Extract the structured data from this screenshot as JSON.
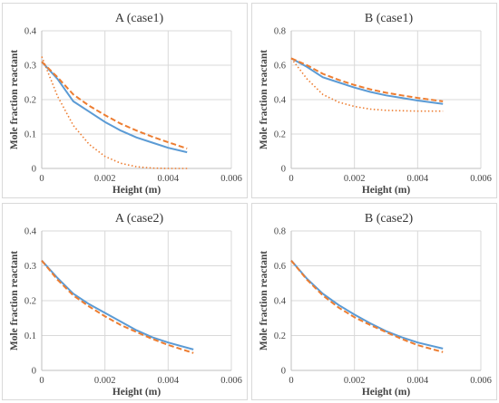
{
  "colors": {
    "solid": "#5b9bd5",
    "dashed": "#ed7d31",
    "dotted": "#ed7d31",
    "grid": "#d9d9d9",
    "axis": "#bfbfbf"
  },
  "chart_data": [
    {
      "type": "line",
      "title": "A (case1)",
      "xlabel": "Height (m)",
      "ylabel": "Mole fraction reactant",
      "xlim": [
        0,
        0.006
      ],
      "ylim": [
        0,
        0.4
      ],
      "xticks": [
        "0",
        "0.002",
        "0.004",
        "0.006"
      ],
      "yticks": [
        "0",
        "0.1",
        "0.2",
        "0.3",
        "0.4"
      ],
      "grid": true,
      "series": [
        {
          "style": "solid",
          "x": [
            0,
            0.0005,
            0.001,
            0.0015,
            0.002,
            0.0025,
            0.003,
            0.0035,
            0.004,
            0.0046
          ],
          "y": [
            0.31,
            0.26,
            0.195,
            0.165,
            0.135,
            0.11,
            0.09,
            0.075,
            0.06,
            0.047
          ]
        },
        {
          "style": "dashed",
          "x": [
            0,
            0.0005,
            0.001,
            0.0015,
            0.002,
            0.0025,
            0.003,
            0.0035,
            0.004,
            0.0046
          ],
          "y": [
            0.31,
            0.265,
            0.215,
            0.182,
            0.155,
            0.13,
            0.11,
            0.092,
            0.076,
            0.058
          ]
        },
        {
          "style": "dotted",
          "x": [
            0,
            0.0005,
            0.001,
            0.0015,
            0.002,
            0.0025,
            0.003,
            0.0035,
            0.004,
            0.0046
          ],
          "y": [
            0.325,
            0.21,
            0.125,
            0.07,
            0.035,
            0.015,
            0.005,
            0.001,
            0.0,
            0.0
          ]
        }
      ]
    },
    {
      "type": "line",
      "title": "B (case1)",
      "xlabel": "Height (m)",
      "ylabel": "Mole fraction reactant",
      "xlim": [
        0,
        0.006
      ],
      "ylim": [
        0,
        0.8
      ],
      "xticks": [
        "0",
        "0.002",
        "0.004",
        "0.006"
      ],
      "yticks": [
        "0",
        "0.2",
        "0.4",
        "0.6",
        "0.8"
      ],
      "grid": true,
      "series": [
        {
          "style": "solid",
          "x": [
            0,
            0.0005,
            0.001,
            0.0015,
            0.002,
            0.0025,
            0.003,
            0.0035,
            0.004,
            0.0048
          ],
          "y": [
            0.64,
            0.59,
            0.53,
            0.5,
            0.47,
            0.445,
            0.425,
            0.41,
            0.395,
            0.375
          ]
        },
        {
          "style": "dashed",
          "x": [
            0,
            0.0005,
            0.001,
            0.0015,
            0.002,
            0.0025,
            0.003,
            0.0035,
            0.004,
            0.0048
          ],
          "y": [
            0.64,
            0.6,
            0.55,
            0.515,
            0.485,
            0.46,
            0.44,
            0.425,
            0.41,
            0.39
          ]
        },
        {
          "style": "dotted",
          "x": [
            0,
            0.0005,
            0.001,
            0.0015,
            0.002,
            0.0025,
            0.003,
            0.0035,
            0.004,
            0.0048
          ],
          "y": [
            0.64,
            0.52,
            0.43,
            0.385,
            0.36,
            0.345,
            0.338,
            0.335,
            0.333,
            0.333
          ]
        }
      ]
    },
    {
      "type": "line",
      "title": "A (case2)",
      "xlabel": "Height (m)",
      "ylabel": "Mole fraction reactant",
      "xlim": [
        0,
        0.006
      ],
      "ylim": [
        0,
        0.4
      ],
      "xticks": [
        "0",
        "0.002",
        "0.004",
        "0.006"
      ],
      "yticks": [
        "0",
        "0.1",
        "0.2",
        "0.3",
        "0.4"
      ],
      "grid": true,
      "series": [
        {
          "style": "solid",
          "x": [
            0,
            0.0005,
            0.001,
            0.0015,
            0.002,
            0.0025,
            0.003,
            0.0035,
            0.004,
            0.0048
          ],
          "y": [
            0.315,
            0.265,
            0.22,
            0.19,
            0.165,
            0.14,
            0.115,
            0.095,
            0.08,
            0.06
          ]
        },
        {
          "style": "dashed",
          "x": [
            0,
            0.0005,
            0.001,
            0.0015,
            0.002,
            0.0025,
            0.003,
            0.0035,
            0.004,
            0.0048
          ],
          "y": [
            0.315,
            0.26,
            0.215,
            0.183,
            0.155,
            0.13,
            0.11,
            0.09,
            0.073,
            0.05
          ]
        }
      ]
    },
    {
      "type": "line",
      "title": "B (case2)",
      "xlabel": "Height (m)",
      "ylabel": "Mole fraction reactant",
      "xlim": [
        0,
        0.006
      ],
      "ylim": [
        0,
        0.8
      ],
      "xticks": [
        "0",
        "0.002",
        "0.004",
        "0.006"
      ],
      "yticks": [
        "0",
        "0.2",
        "0.4",
        "0.6",
        "0.8"
      ],
      "grid": true,
      "series": [
        {
          "style": "solid",
          "x": [
            0,
            0.0005,
            0.001,
            0.0015,
            0.002,
            0.0025,
            0.003,
            0.0035,
            0.004,
            0.0048
          ],
          "y": [
            0.63,
            0.525,
            0.44,
            0.375,
            0.32,
            0.27,
            0.225,
            0.19,
            0.16,
            0.125
          ]
        },
        {
          "style": "dashed",
          "x": [
            0,
            0.0005,
            0.001,
            0.0015,
            0.002,
            0.0025,
            0.003,
            0.0035,
            0.004,
            0.0048
          ],
          "y": [
            0.63,
            0.52,
            0.43,
            0.36,
            0.305,
            0.26,
            0.22,
            0.18,
            0.145,
            0.105
          ]
        }
      ]
    }
  ]
}
